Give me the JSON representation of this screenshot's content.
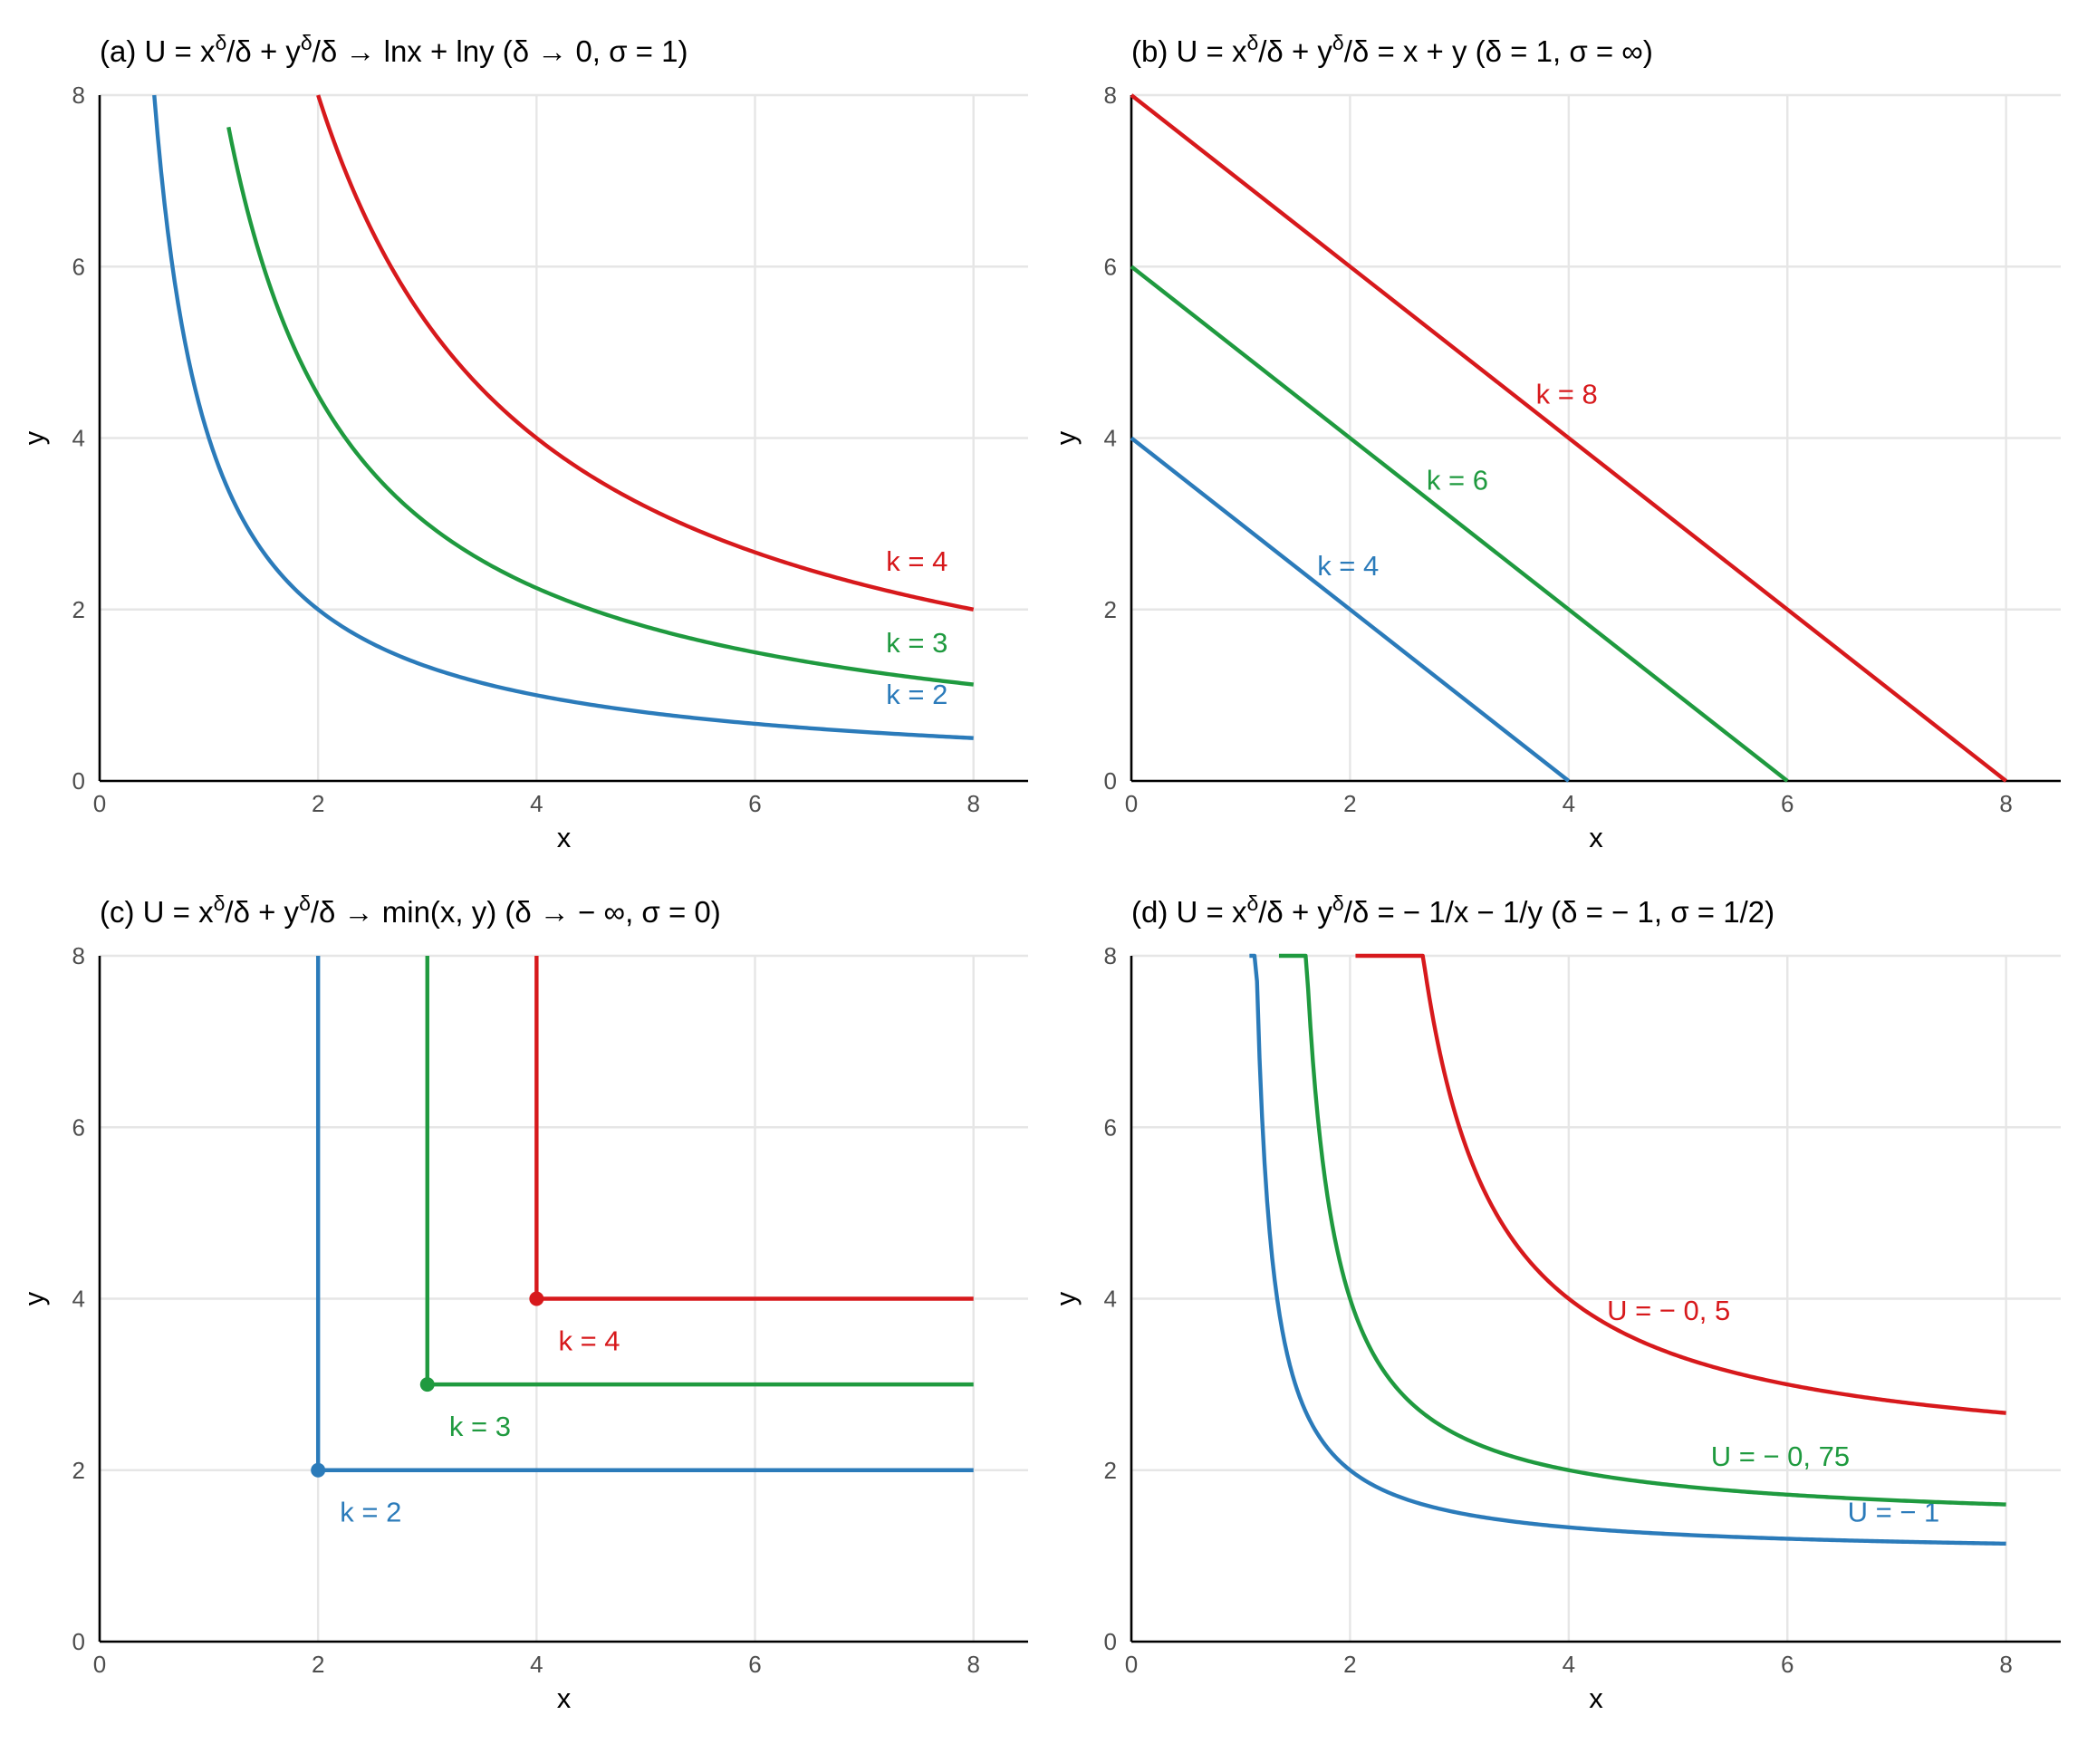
{
  "colors": {
    "blue": "#2b7bba",
    "green": "#1f9a3f",
    "red": "#d7191c",
    "grid": "#e6e6e6",
    "axis": "#000000",
    "tick": "#4d4d4d"
  },
  "chart_data": [
    {
      "id": "a",
      "type": "line",
      "title": "(a) U = x^δ/δ + y^δ/δ → lnx + lny (δ → 0, σ = 1)",
      "title_parts": {
        "prefix": "(a) U = x",
        "sup1": "δ",
        "mid": "/δ + y",
        "sup2": "δ",
        "suffix": "/δ → lnx + lny (δ → 0, σ = 1)"
      },
      "xlabel": "x",
      "ylabel": "y",
      "xlim": [
        0,
        8.5
      ],
      "ylim": [
        0,
        8
      ],
      "xticks": [
        0,
        2,
        4,
        6,
        8
      ],
      "yticks": [
        0,
        2,
        4,
        6,
        8
      ],
      "grid": true,
      "series": [
        {
          "name": "k = 2",
          "color": "blue",
          "kind": "hyperbola",
          "k": 2,
          "power": 2,
          "x_range": [
            0.5,
            8
          ],
          "label_at": [
            7.2,
            0.9
          ]
        },
        {
          "name": "k = 3",
          "color": "green",
          "kind": "hyperbola",
          "k": 3,
          "power": 2,
          "x_range": [
            1.18,
            8
          ],
          "label_at": [
            7.2,
            1.5
          ]
        },
        {
          "name": "k = 4",
          "color": "red",
          "kind": "hyperbola",
          "k": 4,
          "power": 2,
          "x_range": [
            2,
            8
          ],
          "label_at": [
            7.2,
            2.45
          ]
        }
      ]
    },
    {
      "id": "b",
      "type": "line",
      "title": "(b) U = x^δ/δ + y^δ/δ = x + y (δ = 1, σ = ∞)",
      "title_parts": {
        "prefix": "(b) U = x",
        "sup1": "δ",
        "mid": "/δ + y",
        "sup2": "δ",
        "suffix": "/δ = x + y (δ = 1, σ = ∞)"
      },
      "xlabel": "x",
      "ylabel": "y",
      "xlim": [
        0,
        8.5
      ],
      "ylim": [
        0,
        8
      ],
      "xticks": [
        0,
        2,
        4,
        6,
        8
      ],
      "yticks": [
        0,
        2,
        4,
        6,
        8
      ],
      "grid": true,
      "series": [
        {
          "name": "k = 4",
          "color": "blue",
          "kind": "linear",
          "k": 4,
          "label_at": [
            1.7,
            2.4
          ]
        },
        {
          "name": "k = 6",
          "color": "green",
          "kind": "linear",
          "k": 6,
          "label_at": [
            2.7,
            3.4
          ]
        },
        {
          "name": "k = 8",
          "color": "red",
          "kind": "linear",
          "k": 8,
          "label_at": [
            3.7,
            4.4
          ]
        }
      ]
    },
    {
      "id": "c",
      "type": "line",
      "title": "(c) U = x^δ/δ + y^δ/δ → min(x, y) (δ → −∞, σ = 0)",
      "title_parts": {
        "prefix": "(c) U = x",
        "sup1": "δ",
        "mid": "/δ + y",
        "sup2": "δ",
        "suffix": "/δ →  min(x, y) (δ → − ∞, σ = 0)"
      },
      "xlabel": "x",
      "ylabel": "y",
      "xlim": [
        0,
        8.5
      ],
      "ylim": [
        0,
        8
      ],
      "xticks": [
        0,
        2,
        4,
        6,
        8
      ],
      "yticks": [
        0,
        2,
        4,
        6,
        8
      ],
      "grid": true,
      "series": [
        {
          "name": "k = 2",
          "color": "blue",
          "kind": "leontief",
          "k": 2,
          "x_end": 8,
          "label_at": [
            2.2,
            1.4
          ]
        },
        {
          "name": "k = 3",
          "color": "green",
          "kind": "leontief",
          "k": 3,
          "x_end": 8,
          "label_at": [
            3.2,
            2.4
          ]
        },
        {
          "name": "k = 4",
          "color": "red",
          "kind": "leontief",
          "k": 4,
          "x_end": 8,
          "label_at": [
            4.2,
            3.4
          ]
        }
      ]
    },
    {
      "id": "d",
      "type": "line",
      "title": "(d) U = x^δ/δ + y^δ/δ = −1/x − 1/y (δ = −1, σ = 1/2)",
      "title_parts": {
        "prefix": "(d) U = x",
        "sup1": "δ",
        "mid": "/δ + y",
        "sup2": "δ",
        "suffix": "/δ = − 1/x − 1/y (δ = − 1, σ = 1/2)"
      },
      "xlabel": "x",
      "ylabel": "y",
      "xlim": [
        0,
        8.5
      ],
      "ylim": [
        0,
        8
      ],
      "xticks": [
        0,
        2,
        4,
        6,
        8
      ],
      "yticks": [
        0,
        2,
        4,
        6,
        8
      ],
      "grid": true,
      "series": [
        {
          "name": "U =  − 1",
          "color": "blue",
          "kind": "ces_minus_one",
          "U": -1,
          "x_start": 1.08,
          "x_end": 8,
          "label_at": [
            6.55,
            1.4
          ]
        },
        {
          "name": "U =  − 0, 75",
          "color": "green",
          "kind": "ces_minus_one",
          "U": -0.75,
          "x_start": 1.35,
          "x_end": 8,
          "label_at": [
            5.3,
            2.05
          ]
        },
        {
          "name": "U =  − 0, 5",
          "color": "red",
          "kind": "ces_minus_one",
          "U": -0.5,
          "x_start": 2.05,
          "x_end": 8,
          "label_at": [
            4.35,
            3.75
          ]
        }
      ]
    }
  ]
}
